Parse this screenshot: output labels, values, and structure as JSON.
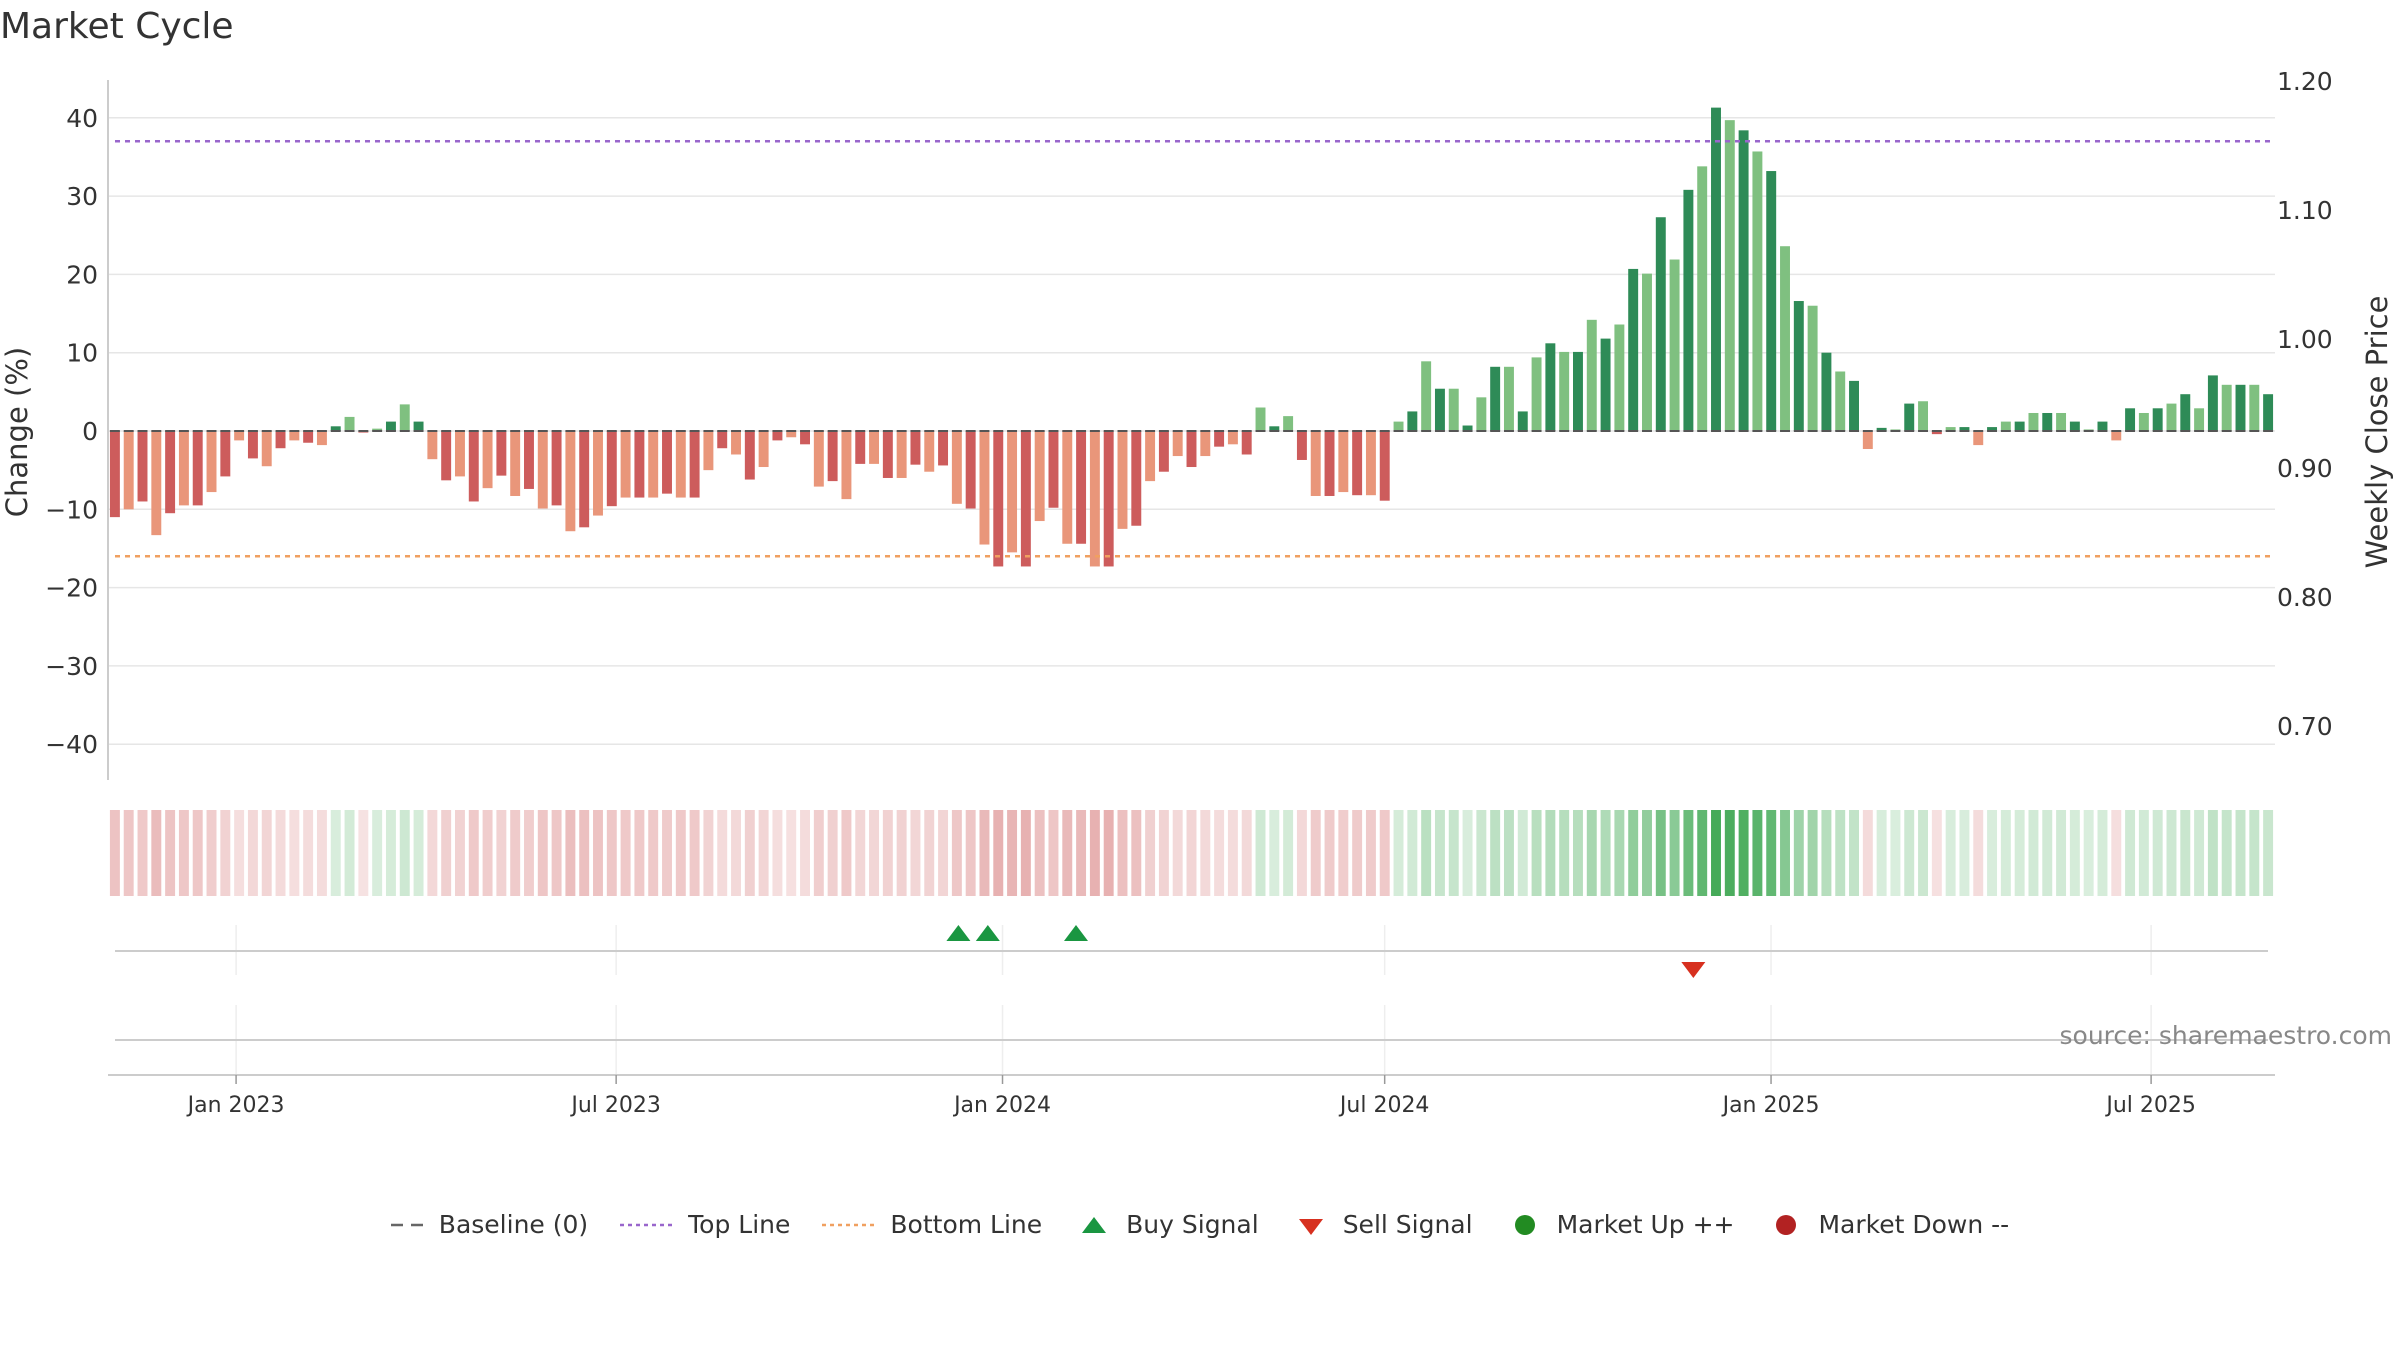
{
  "chart_data": {
    "type": "bar",
    "title": "Market Cycle",
    "ylabel_left": "Change (%)",
    "ylabel_right": "Weekly Close Price",
    "y_left_ticks": [
      40,
      30,
      20,
      10,
      0,
      -10,
      -20,
      -30,
      -40
    ],
    "y_left_tick_labels": [
      "40",
      "30",
      "20",
      "10",
      "0",
      "−10",
      "−20",
      "−30",
      "−40"
    ],
    "y_right_ticks": [
      1.2,
      1.1,
      1.0,
      0.9,
      0.8,
      0.7
    ],
    "y_right_tick_labels": [
      "1.20",
      "1.10",
      "1.00",
      "0.90",
      "0.80",
      "0.70"
    ],
    "x_tick_labels": [
      "Jan 2023",
      "Jul 2023",
      "Jan 2024",
      "Jul 2024",
      "Jan 2025",
      "Jul 2025"
    ],
    "x_tick_dates": [
      "2023-01-01",
      "2023-07-01",
      "2024-01-01",
      "2024-07-01",
      "2025-01-01",
      "2025-07-01"
    ],
    "x_start": "2022-11-01",
    "x_end": "2025-08-29",
    "top_line": 37,
    "bottom_line": -16,
    "bars": [
      -11.0,
      -10.0,
      -9.0,
      -13.3,
      -10.5,
      -9.5,
      -9.5,
      -7.8,
      -5.8,
      -1.2,
      -3.5,
      -4.5,
      -2.2,
      -1.2,
      -1.5,
      -1.8,
      0.6,
      1.8,
      -0.2,
      0.3,
      1.2,
      3.4,
      1.2,
      -3.6,
      -6.3,
      -5.8,
      -9.0,
      -7.3,
      -5.7,
      -8.3,
      -7.4,
      -9.9,
      -9.5,
      -12.8,
      -12.3,
      -10.8,
      -9.6,
      -8.5,
      -8.5,
      -8.5,
      -8.0,
      -8.5,
      -8.5,
      -5.0,
      -2.2,
      -3.0,
      -6.2,
      -4.6,
      -1.2,
      -0.8,
      -1.7,
      -7.1,
      -6.4,
      -8.7,
      -4.2,
      -4.2,
      -6.0,
      -6.0,
      -4.3,
      -5.2,
      -4.4,
      -9.3,
      -9.9,
      -14.5,
      -17.3,
      -15.5,
      -17.3,
      -11.5,
      -9.8,
      -14.4,
      -14.4,
      -17.3,
      -17.3,
      -12.5,
      -12.1,
      -6.4,
      -5.2,
      -3.2,
      -4.6,
      -3.2,
      -2.0,
      -1.7,
      -3.0,
      3.0,
      0.6,
      1.9,
      -3.7,
      -8.3,
      -8.3,
      -7.8,
      -8.2,
      -8.2,
      -8.9,
      1.2,
      2.5,
      8.9,
      5.4,
      5.4,
      0.7,
      4.3,
      8.2,
      8.2,
      2.5,
      9.4,
      11.2,
      10.1,
      10.1,
      14.2,
      11.8,
      13.6,
      20.7,
      20.1,
      27.3,
      21.9,
      30.8,
      33.8,
      41.3,
      39.7,
      38.4,
      35.7,
      33.2,
      23.6,
      16.6,
      16.0,
      10.0,
      7.6,
      6.4,
      -2.3,
      0.4,
      0.2,
      3.5,
      3.8,
      -0.4,
      0.5,
      0.5,
      -1.8,
      0.5,
      1.2,
      1.2,
      2.3,
      2.3,
      2.3,
      1.2,
      0.2,
      1.2,
      -1.2,
      2.9,
      2.3,
      2.9,
      3.5,
      4.7,
      2.9,
      7.1,
      5.9,
      5.9,
      5.9,
      4.7
    ],
    "heat_strip": "per-bar background intensity of change",
    "buy_signals": [
      "2023-12-11",
      "2023-12-25",
      "2024-02-05"
    ],
    "sell_signals": [
      "2024-11-25"
    ],
    "source": "source: sharemaestro.com",
    "legend": [
      {
        "label": "Baseline (0)",
        "marker": "dashed-line",
        "color": "#666666"
      },
      {
        "label": "Top Line",
        "marker": "dotted-line",
        "color": "#9966cc"
      },
      {
        "label": "Bottom Line",
        "marker": "dotted-line",
        "color": "#f0a060"
      },
      {
        "label": "Buy Signal",
        "marker": "triangle-up",
        "color": "#1a9641"
      },
      {
        "label": "Sell Signal",
        "marker": "triangle-down",
        "color": "#d7301f"
      },
      {
        "label": "Market Up ++",
        "marker": "circle",
        "color": "#228b22"
      },
      {
        "label": "Market Down --",
        "marker": "circle",
        "color": "#b22222"
      }
    ],
    "colors": {
      "up_strong": "#2e8b57",
      "up_weak": "#7fc080",
      "down_strong": "#cd5c5c",
      "down_weak": "#e9967a",
      "top_line": "#9966cc",
      "bottom_line": "#f0a060",
      "buy": "#1a9641",
      "sell": "#d7301f"
    }
  }
}
